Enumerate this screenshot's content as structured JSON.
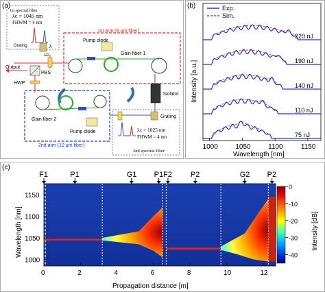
{
  "panel_a": {
    "label": "(a)",
    "filter1_title": "1st spectral filter",
    "filter1_lambda": "λc = 1045 nm",
    "filter1_fwhm": "FHWM = 4 nm",
    "arm1_label": "1st arm (6 μm fiber)",
    "pump1": "Pump diode",
    "gain1": "Gain fiber 1",
    "grating1": "Grating",
    "lambda_symbol": "λ",
    "lambda_half": "λ/2",
    "output": "Output",
    "pbs": "PBS",
    "hwp": "HWP",
    "isolator": "Isolator",
    "gain2": "Gain fiber 2",
    "pump2": "Pump diode",
    "arm2_label": "2nd arm (10 μm fiber)",
    "grating2": "Grating",
    "filter2_lambda": "λc = 1025 nm",
    "filter2_fwhm": "FHWM = 4 nm",
    "filter2_title": "2nd spectral filter"
  },
  "panel_b": {
    "label": "(b)",
    "ylabel": "Intensity [a.u.]",
    "xlabel": "Wavelength [nm]",
    "legend": [
      "Exp.",
      "Sim."
    ],
    "energies": [
      "220 nJ",
      "190 nJ",
      "140 nJ",
      "110 nJ",
      "75 nJ"
    ]
  },
  "panel_c": {
    "label": "(c)",
    "xlabel": "Propagation distance [m]",
    "ylabel": "Wavelength [nm]",
    "colorbar_label": "Intensity [dB]",
    "markers": [
      "F1",
      "P1",
      "G1",
      "P1",
      "F2",
      "P2",
      "G2",
      "P2"
    ]
  },
  "chart_data": [
    {
      "type": "line",
      "xlabel": "Wavelength [nm]",
      "ylabel": "Intensity [a.u.]",
      "xlim": [
        990,
        1170
      ],
      "xticks": [
        1000,
        1050,
        1100,
        1150
      ],
      "series": [
        {
          "name": "Exp.",
          "color": "#2233cc"
        },
        {
          "name": "Sim.",
          "color": "#e03030"
        }
      ],
      "traces": [
        {
          "label": "220 nJ",
          "start": 1003,
          "end": 1135,
          "peak": 1120
        },
        {
          "label": "190 nJ",
          "start": 1003,
          "end": 1118,
          "peak": 1105
        },
        {
          "label": "140 nJ",
          "start": 1003,
          "end": 1112,
          "peak": 1095
        },
        {
          "label": "110 nJ",
          "start": 1003,
          "end": 1105,
          "peak": 1080
        },
        {
          "label": "75 nJ",
          "start": 1003,
          "end": 1095,
          "peak": 1050
        }
      ]
    },
    {
      "type": "heatmap",
      "xlabel": "Propagation distance [m]",
      "ylabel": "Wavelength [nm]",
      "xlim": [
        0,
        12.7
      ],
      "ylim": [
        985,
        1175
      ],
      "xticks": [
        0,
        2,
        4,
        6,
        8,
        10,
        12
      ],
      "yticks": [
        1000,
        1050,
        1100,
        1150
      ],
      "colorbar": {
        "label": "Intensity [dB]",
        "range": [
          -45,
          0
        ],
        "ticks": [
          0,
          -10,
          -20,
          -30,
          -40
        ]
      },
      "segment_boundaries": [
        3.2,
        6.5,
        6.7,
        9.7,
        12.3
      ],
      "markers": [
        {
          "label": "F1",
          "x": 0.0
        },
        {
          "label": "P1",
          "x": 1.7
        },
        {
          "label": "G1",
          "x": 4.8
        },
        {
          "label": "P1",
          "x": 6.3
        },
        {
          "label": "F2",
          "x": 6.8
        },
        {
          "label": "P2",
          "x": 8.3
        },
        {
          "label": "G2",
          "x": 11.0
        },
        {
          "label": "P2",
          "x": 12.5
        }
      ]
    }
  ]
}
